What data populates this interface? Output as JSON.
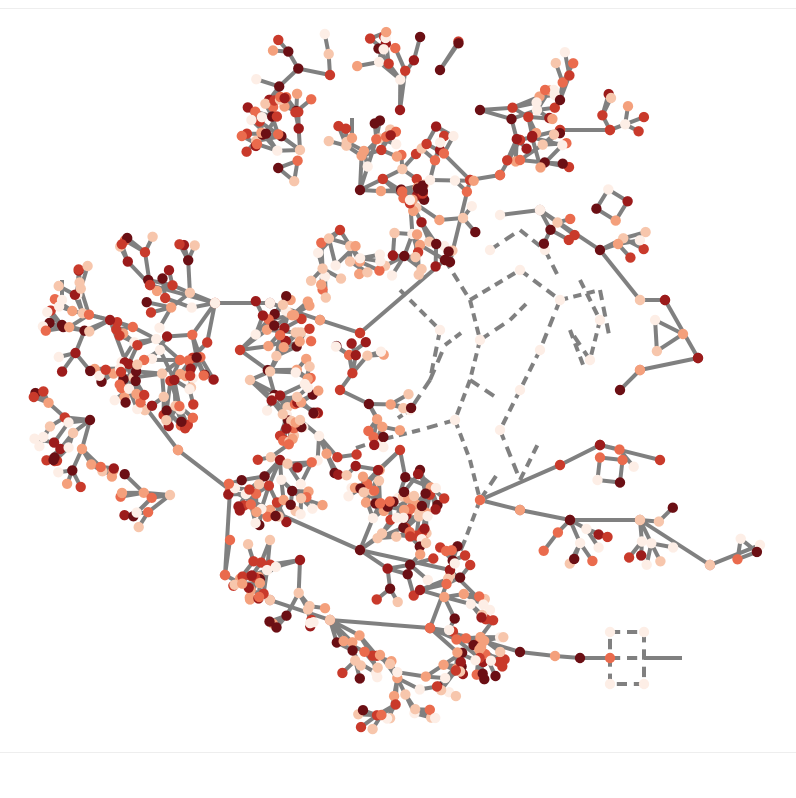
{
  "figure": {
    "kind": "network-graph",
    "edge_color": "#808080",
    "node_palette": [
      "#fdeee6",
      "#f7c6ac",
      "#f4a07c",
      "#ea6b4d",
      "#c93a2b",
      "#9c1b1b",
      "#6b0f14"
    ],
    "seed": 20240607
  }
}
